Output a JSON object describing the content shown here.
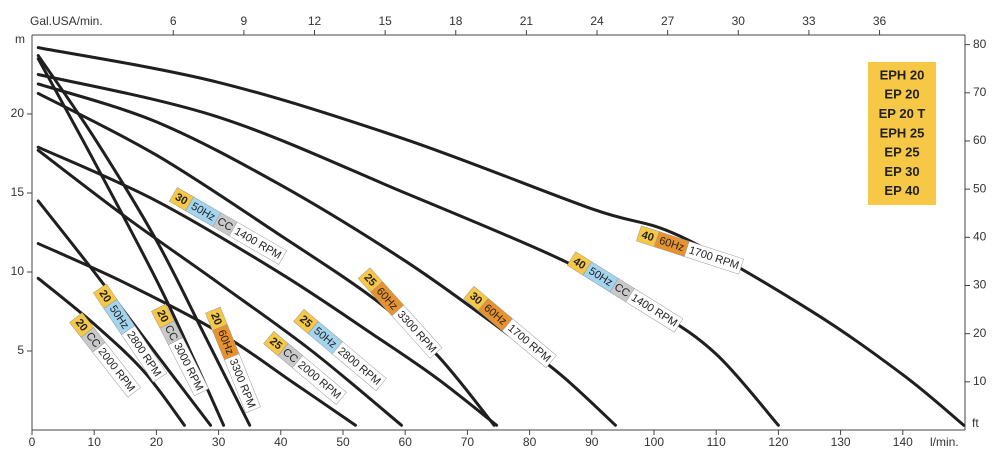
{
  "chart_data": {
    "type": "line",
    "x_label": "l/min.",
    "x2_label": "Gal.USA/min.",
    "y_label": "m",
    "y2_label": "ft",
    "xlim": [
      0,
      150
    ],
    "xticks": [
      0,
      10,
      20,
      30,
      40,
      50,
      60,
      70,
      80,
      90,
      100,
      110,
      120,
      130,
      140
    ],
    "x2lim": [
      0,
      39.63
    ],
    "x2ticks": [
      6,
      9,
      12,
      15,
      18,
      21,
      24,
      27,
      30,
      33,
      36
    ],
    "ylim": [
      0,
      25
    ],
    "yticks": [
      5,
      10,
      15,
      20
    ],
    "y2lim": [
      0,
      82
    ],
    "y2ticks": [
      10,
      20,
      30,
      40,
      50,
      60,
      70,
      80
    ],
    "line_color": "#1f1f1f",
    "models": [
      "EPH 20",
      "EP 20",
      "EP 20 T",
      "EPH 25",
      "EP 25",
      "EP 30",
      "EP 40"
    ],
    "models_color": "#f6c846",
    "series": [
      {
        "badges": [
          {
            "text": "20",
            "color": "#f6c846"
          },
          {
            "text": "CC",
            "color": "#c9c9c9"
          },
          {
            "text": "2000 RPM",
            "color": "#ffffff"
          }
        ],
        "x": [
          1,
          10,
          18,
          24.5
        ],
        "values": [
          9.6,
          6.7,
          3.7,
          0.3
        ]
      },
      {
        "badges": [
          {
            "text": "20",
            "color": "#f6c846"
          },
          {
            "text": "50Hz",
            "color": "#a3d5ef"
          },
          {
            "text": "2800 RPM",
            "color": "#ffffff"
          }
        ],
        "x": [
          1,
          10,
          20,
          28.7
        ],
        "values": [
          14.5,
          10,
          4.8,
          0.3
        ]
      },
      {
        "badges": [
          {
            "text": "20",
            "color": "#f6c846"
          },
          {
            "text": "CC",
            "color": "#c9c9c9"
          },
          {
            "text": "3000 RPM",
            "color": "#ffffff"
          }
        ],
        "x": [
          1,
          10,
          20,
          26,
          30.8
        ],
        "values": [
          23.5,
          17,
          9.5,
          4.5,
          0.3
        ]
      },
      {
        "badges": [
          {
            "text": "20",
            "color": "#f6c846"
          },
          {
            "text": "60Hz",
            "color": "#e8922e"
          },
          {
            "text": "3300 RPM",
            "color": "#ffffff"
          }
        ],
        "x": [
          1,
          10,
          20,
          28,
          35
        ],
        "values": [
          23.7,
          18.5,
          12,
          5.8,
          0.3
        ]
      },
      {
        "badges": [
          {
            "text": "25",
            "color": "#f6c846"
          },
          {
            "text": "CC",
            "color": "#c9c9c9"
          },
          {
            "text": "2000 RPM",
            "color": "#ffffff"
          }
        ],
        "x": [
          1,
          15,
          30,
          42,
          52
        ],
        "values": [
          11.8,
          9.3,
          6.2,
          3,
          0.3
        ]
      },
      {
        "badges": [
          {
            "text": "25",
            "color": "#f6c846"
          },
          {
            "text": "50Hz",
            "color": "#a3d5ef"
          },
          {
            "text": "2800 RPM",
            "color": "#ffffff"
          }
        ],
        "x": [
          1,
          15,
          30,
          45,
          59.4
        ],
        "values": [
          17.7,
          13.5,
          9.3,
          5,
          0.3
        ]
      },
      {
        "badges": [
          {
            "text": "25",
            "color": "#f6c846"
          },
          {
            "text": "60Hz",
            "color": "#e8922e"
          },
          {
            "text": "3300 RPM",
            "color": "#ffffff"
          }
        ],
        "x": [
          1,
          20,
          40,
          55,
          65,
          74.3
        ],
        "values": [
          21.3,
          17.4,
          12.3,
          8.3,
          4.8,
          0.3
        ]
      },
      {
        "badges": [
          {
            "text": "30",
            "color": "#f6c846"
          },
          {
            "text": "50Hz",
            "color": "#a3d5ef"
          },
          {
            "text": "CC",
            "color": "#c9c9c9"
          },
          {
            "text": "1400 RPM",
            "color": "#ffffff"
          }
        ],
        "x": [
          1,
          20,
          40,
          55,
          65,
          74.7
        ],
        "values": [
          17.9,
          14.5,
          9.9,
          6,
          3.3,
          0.3
        ]
      },
      {
        "badges": [
          {
            "text": "30",
            "color": "#f6c846"
          },
          {
            "text": "60Hz",
            "color": "#e8922e"
          },
          {
            "text": "1700 RPM",
            "color": "#ffffff"
          }
        ],
        "x": [
          1,
          20,
          40,
          60,
          75,
          85,
          93.8
        ],
        "values": [
          21.9,
          19.5,
          15.5,
          10.7,
          6.5,
          3.5,
          0.3
        ]
      },
      {
        "badges": [
          {
            "text": "40",
            "color": "#f6c846"
          },
          {
            "text": "50Hz",
            "color": "#a3d5ef"
          },
          {
            "text": "CC",
            "color": "#c9c9c9"
          },
          {
            "text": "1400 RPM",
            "color": "#ffffff"
          }
        ],
        "x": [
          1,
          30,
          60,
          85,
          100,
          110,
          120
        ],
        "values": [
          22.5,
          19.8,
          15,
          10.8,
          7.6,
          4.8,
          0.3
        ]
      },
      {
        "badges": [
          {
            "text": "40",
            "color": "#f6c846"
          },
          {
            "text": "60Hz",
            "color": "#e8922e"
          },
          {
            "text": "1700 RPM",
            "color": "#ffffff"
          }
        ],
        "x": [
          1,
          30,
          60,
          90,
          104,
          125,
          140,
          149.8
        ],
        "values": [
          24.2,
          22,
          18.4,
          14,
          12.3,
          7.6,
          3.5,
          0.3
        ]
      }
    ]
  }
}
